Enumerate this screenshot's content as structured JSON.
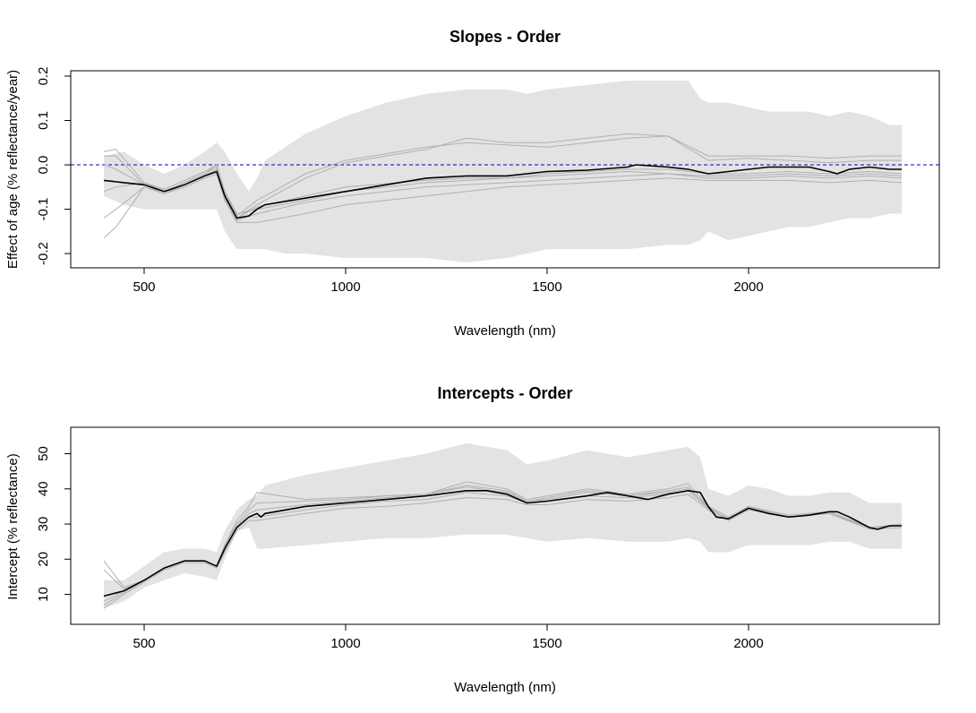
{
  "chart_data": [
    {
      "type": "line",
      "title": "Slopes - Order",
      "xlabel": "Wavelength (nm)",
      "ylabel": "Effect of age (% reflectance/year)",
      "xlim": [
        400,
        2400
      ],
      "ylim": [
        -0.22,
        0.2
      ],
      "x_ticks": [
        500,
        1000,
        1500,
        2000
      ],
      "y_ticks": [
        -0.2,
        -0.1,
        0.0,
        0.1,
        0.2
      ],
      "y_tick_labels": [
        "-0.2",
        "-0.1",
        "0.0",
        "0.1",
        "0.2"
      ],
      "reference_line": {
        "y": 0.0,
        "style": "dashed",
        "color": "#0000cc"
      },
      "grid": false,
      "band": {
        "x": [
          400,
          450,
          500,
          550,
          600,
          650,
          680,
          700,
          730,
          760,
          780,
          800,
          850,
          900,
          1000,
          1100,
          1200,
          1300,
          1400,
          1450,
          1500,
          1600,
          1700,
          1800,
          1850,
          1880,
          1900,
          1950,
          2000,
          2050,
          2100,
          2150,
          2200,
          2250,
          2300,
          2350,
          2380
        ],
        "upper": [
          0.02,
          0.03,
          0.0,
          -0.02,
          0.0,
          0.03,
          0.05,
          0.03,
          -0.02,
          -0.06,
          -0.03,
          0.01,
          0.04,
          0.07,
          0.11,
          0.14,
          0.16,
          0.17,
          0.17,
          0.16,
          0.17,
          0.18,
          0.19,
          0.19,
          0.19,
          0.15,
          0.14,
          0.14,
          0.13,
          0.12,
          0.12,
          0.12,
          0.11,
          0.12,
          0.11,
          0.09,
          0.09
        ],
        "lower": [
          -0.07,
          -0.09,
          -0.1,
          -0.1,
          -0.1,
          -0.1,
          -0.1,
          -0.15,
          -0.19,
          -0.19,
          -0.19,
          -0.19,
          -0.2,
          -0.2,
          -0.21,
          -0.21,
          -0.21,
          -0.22,
          -0.21,
          -0.2,
          -0.19,
          -0.19,
          -0.19,
          -0.18,
          -0.18,
          -0.17,
          -0.15,
          -0.17,
          -0.16,
          -0.15,
          -0.14,
          -0.14,
          -0.13,
          -0.12,
          -0.12,
          -0.11,
          -0.11
        ]
      },
      "series_mean": {
        "x": [
          400,
          450,
          500,
          550,
          600,
          650,
          680,
          700,
          730,
          760,
          780,
          800,
          900,
          1000,
          1100,
          1200,
          1300,
          1400,
          1500,
          1600,
          1700,
          1720,
          1800,
          1850,
          1900,
          1950,
          2000,
          2050,
          2100,
          2150,
          2200,
          2220,
          2250,
          2300,
          2350,
          2380
        ],
        "y": [
          -0.035,
          -0.04,
          -0.045,
          -0.06,
          -0.045,
          -0.025,
          -0.015,
          -0.07,
          -0.12,
          -0.115,
          -0.1,
          -0.09,
          -0.075,
          -0.06,
          -0.045,
          -0.03,
          -0.025,
          -0.025,
          -0.015,
          -0.012,
          -0.005,
          0.0,
          -0.005,
          -0.01,
          -0.02,
          -0.015,
          -0.01,
          -0.005,
          -0.005,
          -0.005,
          -0.015,
          -0.02,
          -0.01,
          -0.005,
          -0.01,
          -0.01
        ]
      },
      "series_individual": [
        {
          "x": [
            400,
            430,
            500,
            550,
            600,
            650,
            680,
            700,
            730,
            780,
            900,
            1000,
            1200,
            1300,
            1400,
            1500,
            1600,
            1700,
            1800,
            1900,
            2000,
            2100,
            2200,
            2300,
            2380
          ],
          "y": [
            0.03,
            0.035,
            -0.04,
            -0.06,
            -0.04,
            -0.02,
            0.0,
            -0.06,
            -0.115,
            -0.08,
            -0.02,
            0.01,
            0.04,
            0.05,
            0.045,
            0.04,
            0.05,
            0.06,
            0.065,
            0.02,
            0.02,
            0.02,
            0.015,
            0.02,
            0.02
          ]
        },
        {
          "x": [
            400,
            430,
            500,
            550,
            600,
            650,
            680,
            700,
            730,
            780,
            900,
            1000,
            1200,
            1300,
            1400,
            1500,
            1600,
            1700,
            1800,
            1900,
            2000,
            2100,
            2200,
            2300,
            2380
          ],
          "y": [
            0.02,
            0.02,
            -0.045,
            -0.065,
            -0.045,
            -0.025,
            -0.01,
            -0.065,
            -0.12,
            -0.09,
            -0.03,
            0.005,
            0.035,
            0.06,
            0.05,
            0.05,
            0.06,
            0.07,
            0.065,
            0.01,
            0.015,
            0.01,
            0.005,
            0.01,
            0.01
          ]
        },
        {
          "x": [
            400,
            430,
            500,
            550,
            600,
            650,
            680,
            700,
            730,
            780,
            900,
            1000,
            1200,
            1300,
            1400,
            1500,
            1600,
            1700,
            1800,
            1900,
            2000,
            2100,
            2200,
            2300,
            2380
          ],
          "y": [
            -0.12,
            -0.1,
            -0.05,
            -0.065,
            -0.05,
            -0.03,
            -0.02,
            -0.075,
            -0.125,
            -0.11,
            -0.085,
            -0.07,
            -0.05,
            -0.045,
            -0.04,
            -0.035,
            -0.03,
            -0.025,
            -0.02,
            -0.03,
            -0.03,
            -0.025,
            -0.03,
            -0.025,
            -0.03
          ]
        },
        {
          "x": [
            400,
            430,
            500,
            550,
            600,
            650,
            680,
            700,
            730,
            780,
            900,
            1000,
            1200,
            1300,
            1400,
            1500,
            1600,
            1700,
            1800,
            1900,
            2000,
            2100,
            2200,
            2300,
            2380
          ],
          "y": [
            -0.165,
            -0.14,
            -0.05,
            -0.065,
            -0.05,
            -0.03,
            -0.02,
            -0.08,
            -0.13,
            -0.13,
            -0.11,
            -0.09,
            -0.07,
            -0.06,
            -0.05,
            -0.045,
            -0.04,
            -0.035,
            -0.03,
            -0.035,
            -0.035,
            -0.035,
            -0.04,
            -0.035,
            -0.04
          ]
        },
        {
          "x": [
            400,
            430,
            500,
            550,
            600,
            650,
            680,
            700,
            730,
            780,
            900,
            1000,
            1200,
            1300,
            1400,
            1500,
            1600,
            1700,
            1800,
            1900,
            2000,
            2100,
            2200,
            2300,
            2380
          ],
          "y": [
            -0.06,
            -0.05,
            -0.04,
            -0.055,
            -0.035,
            -0.015,
            0.0,
            -0.06,
            -0.11,
            -0.1,
            -0.08,
            -0.06,
            -0.04,
            -0.035,
            -0.03,
            -0.02,
            -0.015,
            -0.01,
            -0.01,
            -0.02,
            -0.02,
            -0.015,
            -0.02,
            -0.015,
            -0.02
          ]
        },
        {
          "x": [
            400,
            430,
            500,
            550,
            600,
            650,
            680,
            700,
            730,
            780,
            900,
            1000,
            1200,
            1300,
            1400,
            1500,
            1600,
            1700,
            1800,
            1900,
            2000,
            2100,
            2200,
            2300,
            2380
          ],
          "y": [
            0.0,
            -0.01,
            -0.045,
            -0.06,
            -0.04,
            -0.02,
            -0.005,
            -0.065,
            -0.12,
            -0.095,
            -0.07,
            -0.05,
            -0.035,
            -0.03,
            -0.03,
            -0.025,
            -0.02,
            -0.015,
            -0.02,
            -0.025,
            -0.025,
            -0.02,
            -0.025,
            -0.02,
            -0.025
          ]
        }
      ]
    },
    {
      "type": "line",
      "title": "Intercepts - Order",
      "xlabel": "Wavelength (nm)",
      "ylabel": "Intercept (% reflectance)",
      "xlim": [
        400,
        2400
      ],
      "ylim": [
        3,
        56
      ],
      "x_ticks": [
        500,
        1000,
        1500,
        2000
      ],
      "y_ticks": [
        10,
        20,
        30,
        40,
        50
      ],
      "y_tick_labels": [
        "10",
        "20",
        "30",
        "40",
        "50"
      ],
      "grid": false,
      "band": {
        "x": [
          400,
          450,
          500,
          550,
          600,
          650,
          680,
          700,
          730,
          760,
          780,
          800,
          900,
          1000,
          1100,
          1200,
          1300,
          1400,
          1450,
          1500,
          1600,
          1700,
          1800,
          1850,
          1880,
          1900,
          1950,
          2000,
          2050,
          2100,
          2150,
          2200,
          2250,
          2300,
          2350,
          2380
        ],
        "upper": [
          14,
          14,
          18,
          22,
          23,
          23,
          22,
          28,
          34,
          37,
          38,
          41,
          44,
          46,
          48,
          50,
          53,
          51,
          47,
          48,
          51,
          49,
          51,
          52,
          49,
          40,
          38,
          41,
          40,
          38,
          38,
          39,
          39,
          36,
          36,
          36
        ],
        "lower": [
          6,
          8,
          12,
          14,
          16,
          15,
          14,
          20,
          28,
          29,
          23,
          23,
          24,
          25,
          26,
          26,
          27,
          27,
          26,
          25,
          26,
          25,
          25,
          26,
          25,
          22,
          22,
          24,
          24,
          24,
          24,
          25,
          25,
          23,
          23,
          23
        ]
      },
      "series_mean": {
        "x": [
          400,
          450,
          500,
          550,
          600,
          650,
          680,
          700,
          730,
          760,
          780,
          790,
          800,
          900,
          1000,
          1100,
          1200,
          1300,
          1350,
          1400,
          1450,
          1500,
          1600,
          1650,
          1700,
          1750,
          1800,
          1850,
          1880,
          1900,
          1920,
          1950,
          2000,
          2050,
          2100,
          2150,
          2200,
          2220,
          2250,
          2300,
          2320,
          2350,
          2380
        ],
        "y": [
          9.5,
          11,
          14,
          17.5,
          19.5,
          19.5,
          18,
          23,
          29,
          32,
          33,
          32,
          33,
          35,
          36,
          37,
          38,
          39.5,
          39.5,
          38.5,
          36,
          36.5,
          38,
          39,
          38,
          37,
          38.5,
          39.5,
          39,
          35,
          32,
          31.5,
          34.5,
          33,
          32,
          32.5,
          33.5,
          33.5,
          32,
          29,
          28.5,
          29.5,
          29.5
        ]
      },
      "series_individual": [
        {
          "x": [
            400,
            450,
            500,
            550,
            600,
            650,
            680,
            700,
            730,
            760,
            780,
            900,
            1000,
            1100,
            1200,
            1300,
            1400,
            1450,
            1500,
            1600,
            1700,
            1800,
            1850,
            1900,
            1950,
            2000,
            2100,
            2200,
            2300,
            2380
          ],
          "y": [
            19.5,
            12,
            14,
            17.5,
            19.5,
            19.5,
            18,
            24,
            31,
            35,
            39,
            37,
            37.5,
            38,
            38.5,
            42,
            40,
            37,
            38,
            40,
            38.5,
            40,
            41.5,
            35,
            31,
            35,
            32,
            33,
            29,
            30
          ]
        },
        {
          "x": [
            400,
            450,
            500,
            550,
            600,
            650,
            680,
            700,
            730,
            760,
            780,
            900,
            1000,
            1100,
            1200,
            1300,
            1400,
            1450,
            1500,
            1600,
            1700,
            1800,
            1850,
            1900,
            1950,
            2000,
            2100,
            2200,
            2300,
            2380
          ],
          "y": [
            17,
            11.5,
            14,
            17.5,
            19.5,
            19.5,
            18,
            24,
            30,
            34,
            36,
            36.5,
            37,
            38,
            38.5,
            41,
            39.5,
            36.5,
            37.5,
            39.5,
            38,
            39.5,
            40.5,
            34.5,
            31.5,
            34.5,
            32,
            33,
            29,
            29.5
          ]
        },
        {
          "x": [
            400,
            450,
            500,
            550,
            600,
            650,
            680,
            700,
            730,
            760,
            780,
            900,
            1000,
            1100,
            1200,
            1300,
            1400,
            1450,
            1500,
            1600,
            1700,
            1800,
            1850,
            1900,
            1950,
            2000,
            2100,
            2200,
            2300,
            2380
          ],
          "y": [
            6,
            10,
            13.5,
            17,
            19,
            19,
            17.5,
            22,
            28,
            31,
            31,
            33,
            34.5,
            35,
            36,
            37.5,
            37,
            35.5,
            35.5,
            37,
            36.5,
            37.5,
            38.5,
            34,
            31,
            34,
            32,
            33,
            28.5,
            29
          ]
        },
        {
          "x": [
            400,
            450,
            500,
            550,
            600,
            650,
            680,
            700,
            730,
            760,
            780,
            900,
            1000,
            1100,
            1200,
            1300,
            1400,
            1450,
            1500,
            1600,
            1700,
            1800,
            1850,
            1900,
            1950,
            2000,
            2100,
            2200,
            2300,
            2380
          ],
          "y": [
            7,
            10.5,
            14,
            17.5,
            19.5,
            19.5,
            18,
            23,
            29,
            32,
            32,
            34,
            35.5,
            36.5,
            37,
            39,
            38,
            36,
            36.5,
            38,
            37.5,
            38.5,
            39.5,
            34.5,
            31.5,
            34.5,
            32,
            33.5,
            29,
            29.5
          ]
        },
        {
          "x": [
            400,
            450,
            500,
            550,
            600,
            650,
            680,
            700,
            730,
            760,
            780,
            900,
            1000,
            1100,
            1200,
            1300,
            1400,
            1450,
            1500,
            1600,
            1700,
            1800,
            1850,
            1900,
            1950,
            2000,
            2100,
            2200,
            2300,
            2380
          ],
          "y": [
            8,
            11,
            14,
            17.5,
            19.5,
            19.5,
            18,
            23.5,
            29.5,
            33,
            34,
            35.5,
            36.5,
            37.5,
            38.5,
            40.5,
            39,
            36.5,
            37,
            39,
            38,
            39,
            40,
            35,
            32,
            35,
            32.5,
            33.5,
            29,
            29.5
          ]
        }
      ]
    }
  ]
}
